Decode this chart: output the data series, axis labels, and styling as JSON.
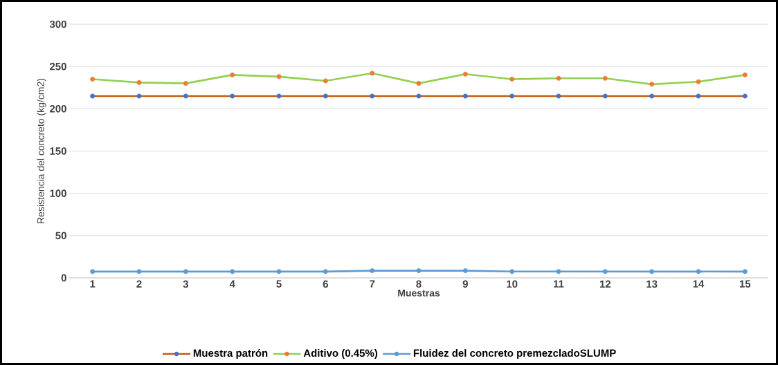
{
  "chart_data": {
    "type": "line",
    "xlabel": "Muestras",
    "ylabel": "Resistencia del concreto (kg/cm2)",
    "categories": [
      "1",
      "2",
      "3",
      "4",
      "5",
      "6",
      "7",
      "8",
      "9",
      "10",
      "11",
      "12",
      "13",
      "14",
      "15"
    ],
    "ylim": [
      0,
      300
    ],
    "yticks": [
      0,
      50,
      100,
      150,
      200,
      250,
      300
    ],
    "grid": "y",
    "legend": "bottom",
    "marker": "circle",
    "series": [
      {
        "name": "Muestra patrón",
        "color": "#c55a11",
        "colors": [
          "#4472c4",
          "#4472c4",
          "#4472c4",
          "#4472c4",
          "#4472c4",
          "#4472c4",
          "#4472c4",
          "#4472c4",
          "#4472c4",
          "#4472c4",
          "#4472c4",
          "#4472c4",
          "#4472c4",
          "#4472c4",
          "#4472c4"
        ],
        "values": [
          215,
          215,
          215,
          215,
          215,
          215,
          215,
          215,
          215,
          215,
          215,
          215,
          215,
          215,
          215
        ]
      },
      {
        "name": "Aditivo (0.45%)",
        "color": "#92d050",
        "colors": [
          "#ed7d31",
          "#ed7d31",
          "#ed7d31",
          "#ed7d31",
          "#ed7d31",
          "#ed7d31",
          "#ed7d31",
          "#ed7d31",
          "#ed7d31",
          "#ed7d31",
          "#ed7d31",
          "#ed7d31",
          "#ed7d31",
          "#ed7d31",
          "#ed7d31"
        ],
        "values": [
          235,
          231,
          230,
          240,
          238,
          233,
          242,
          230,
          241,
          235,
          236,
          236,
          229,
          232,
          240
        ]
      },
      {
        "name": "Fluidez del concreto premezcladoSLUMP",
        "color": "#5b9bd5",
        "colors": [
          "#5b9bd5",
          "#5b9bd5",
          "#5b9bd5",
          "#5b9bd5",
          "#5b9bd5",
          "#5b9bd5",
          "#5b9bd5",
          "#5b9bd5",
          "#5b9bd5",
          "#5b9bd5",
          "#5b9bd5",
          "#5b9bd5",
          "#5b9bd5",
          "#5b9bd5",
          "#5b9bd5"
        ],
        "values": [
          7.5,
          7.5,
          7.5,
          7.5,
          7.5,
          7.5,
          8.5,
          8.5,
          8.5,
          7.5,
          7.5,
          7.5,
          7.5,
          7.5,
          7.5
        ]
      }
    ]
  }
}
